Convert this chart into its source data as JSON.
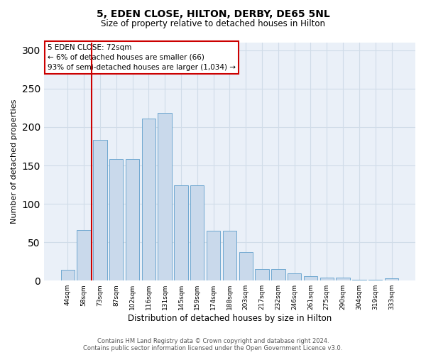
{
  "title1": "5, EDEN CLOSE, HILTON, DERBY, DE65 5NL",
  "title2": "Size of property relative to detached houses in Hilton",
  "xlabel": "Distribution of detached houses by size in Hilton",
  "ylabel": "Number of detached properties",
  "bar_labels": [
    "44sqm",
    "58sqm",
    "73sqm",
    "87sqm",
    "102sqm",
    "116sqm",
    "131sqm",
    "145sqm",
    "159sqm",
    "174sqm",
    "188sqm",
    "203sqm",
    "217sqm",
    "232sqm",
    "246sqm",
    "261sqm",
    "275sqm",
    "290sqm",
    "304sqm",
    "319sqm",
    "333sqm"
  ],
  "bar_values": [
    14,
    66,
    183,
    158,
    158,
    211,
    218,
    124,
    124,
    65,
    65,
    37,
    15,
    15,
    9,
    6,
    4,
    4,
    1,
    1,
    3
  ],
  "bar_color": "#c9d9eb",
  "bar_edge_color": "#6fa8d0",
  "vline_color": "#cc0000",
  "annotation_text": "5 EDEN CLOSE: 72sqm\n← 6% of detached houses are smaller (66)\n93% of semi-detached houses are larger (1,034) →",
  "box_edge_color": "#cc0000",
  "ylim": [
    0,
    310
  ],
  "yticks": [
    0,
    50,
    100,
    150,
    200,
    250,
    300
  ],
  "footer": "Contains HM Land Registry data © Crown copyright and database right 2024.\nContains public sector information licensed under the Open Government Licence v3.0.",
  "grid_color": "#d0dce8",
  "background_color": "#eaf0f8"
}
